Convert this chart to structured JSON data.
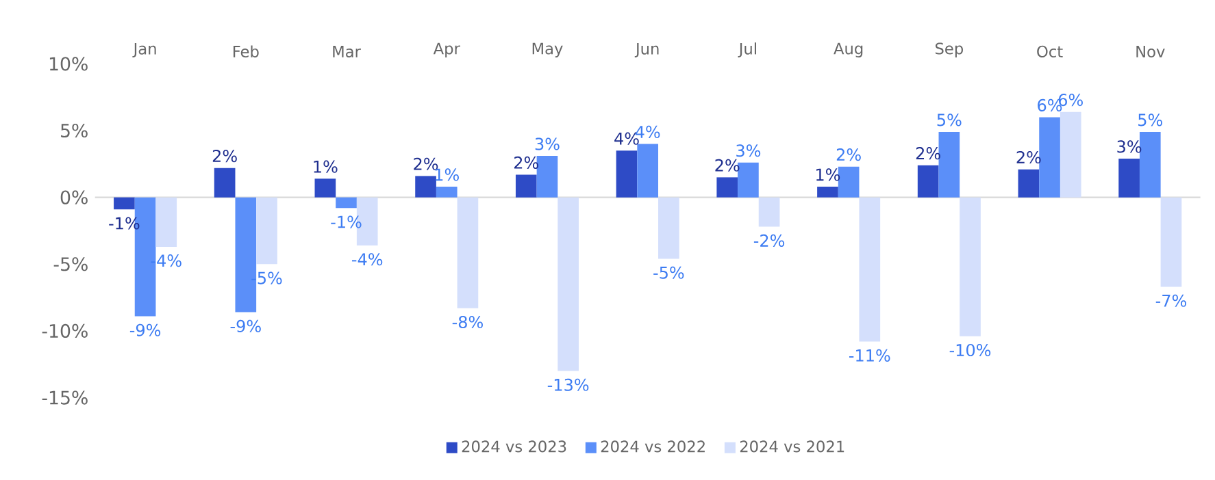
{
  "chart_data": {
    "type": "bar",
    "categories": [
      "Jan",
      "Feb",
      "Mar",
      "Apr",
      "May",
      "Jun",
      "Jul",
      "Aug",
      "Sep",
      "Oct",
      "Nov"
    ],
    "series": [
      {
        "name": "2024 vs 2023",
        "color": "#2e4bc6",
        "values": [
          -0.9,
          2.2,
          1.4,
          1.6,
          1.7,
          3.5,
          1.5,
          0.8,
          2.4,
          2.1,
          2.9
        ],
        "value_labels": [
          "-1%",
          "2%",
          "1%",
          "2%",
          "2%",
          "4%",
          "2%",
          "1%",
          "2%",
          "2%",
          "3%"
        ]
      },
      {
        "name": "2024 vs 2022",
        "color": "#5b8ff9",
        "values": [
          -8.9,
          -8.6,
          -0.8,
          0.8,
          3.1,
          4.0,
          2.6,
          2.3,
          4.9,
          6.0,
          4.9
        ],
        "value_labels": [
          "-9%",
          "-9%",
          "-1%",
          "1%",
          "3%",
          "4%",
          "3%",
          "2%",
          "5%",
          "6%",
          "5%"
        ]
      },
      {
        "name": "2024 vs 2021",
        "color": "#d4dffc",
        "values": [
          -3.7,
          -5.0,
          -3.6,
          -8.3,
          -13.0,
          -4.6,
          -2.2,
          -10.8,
          -10.4,
          6.4,
          -6.7
        ],
        "value_labels": [
          "-4%",
          "-5%",
          "-4%",
          "-8%",
          "-13%",
          "-5%",
          "-2%",
          "-11%",
          "-10%",
          "6%",
          "-7%"
        ]
      }
    ],
    "ylim": [
      -15,
      10
    ],
    "yticks": [
      {
        "value": 10,
        "label": "10%"
      },
      {
        "value": 5,
        "label": "5%"
      },
      {
        "value": 0,
        "label": "0%"
      },
      {
        "value": -5,
        "label": "-5%"
      },
      {
        "value": -10,
        "label": "-10%"
      },
      {
        "value": -15,
        "label": "-15%"
      }
    ],
    "ref_lines": [
      {
        "axis": "y",
        "value": 0,
        "color": "#d9d9d9"
      }
    ],
    "legend": "bottom",
    "grid": false
  }
}
